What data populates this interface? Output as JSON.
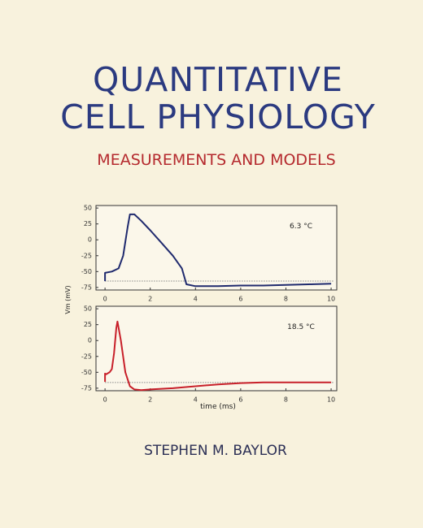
{
  "cover": {
    "title_lines": [
      "QUANTITATIVE",
      "CELL PHYSIOLOGY"
    ],
    "subtitle": "MEASUREMENTS AND MODELS",
    "author": "STEPHEN M. BAYLOR"
  },
  "chart_data": [
    {
      "type": "line",
      "ylabel": "Vm (mV)",
      "annotation": "6.3 °C",
      "xlim": [
        -0.4,
        10.25
      ],
      "xticks": [
        0,
        2,
        4,
        6,
        8,
        10
      ],
      "ylim": [
        -79,
        54
      ],
      "yticks": [
        50,
        25,
        0,
        -25,
        -50,
        -75
      ],
      "reference_line": -65,
      "series": [
        {
          "color": "#1f2a6e",
          "x": [
            0,
            0,
            0.3,
            0.6,
            0.8,
            1.0,
            1.1,
            1.3,
            1.6,
            2,
            2.5,
            3,
            3.4,
            3.6,
            4,
            5,
            6,
            7,
            8,
            9,
            10
          ],
          "values": [
            -65,
            -52,
            -50,
            -45,
            -25,
            20,
            40,
            40,
            30,
            15,
            -5,
            -25,
            -45,
            -70,
            -73,
            -73,
            -72,
            -72,
            -71,
            -70,
            -69
          ]
        }
      ]
    },
    {
      "type": "line",
      "xlabel": "time (ms)",
      "annotation": "18.5 °C",
      "xlim": [
        -0.4,
        10.25
      ],
      "xticks": [
        0,
        2,
        4,
        6,
        8,
        10
      ],
      "ylim": [
        -79,
        54
      ],
      "yticks": [
        50,
        25,
        0,
        -25,
        -50,
        -75
      ],
      "reference_line": -66,
      "series": [
        {
          "color": "#c8202a",
          "x": [
            0,
            0,
            0.05,
            0.2,
            0.3,
            0.4,
            0.5,
            0.55,
            0.7,
            0.9,
            1.1,
            1.3,
            1.6,
            2,
            3,
            4,
            5,
            6,
            7,
            8,
            9,
            10
          ],
          "values": [
            -65,
            -52,
            -53,
            -50,
            -45,
            -20,
            20,
            30,
            0,
            -50,
            -72,
            -77,
            -78,
            -77,
            -75,
            -72,
            -69,
            -67,
            -66,
            -66,
            -66,
            -66
          ]
        }
      ]
    }
  ]
}
